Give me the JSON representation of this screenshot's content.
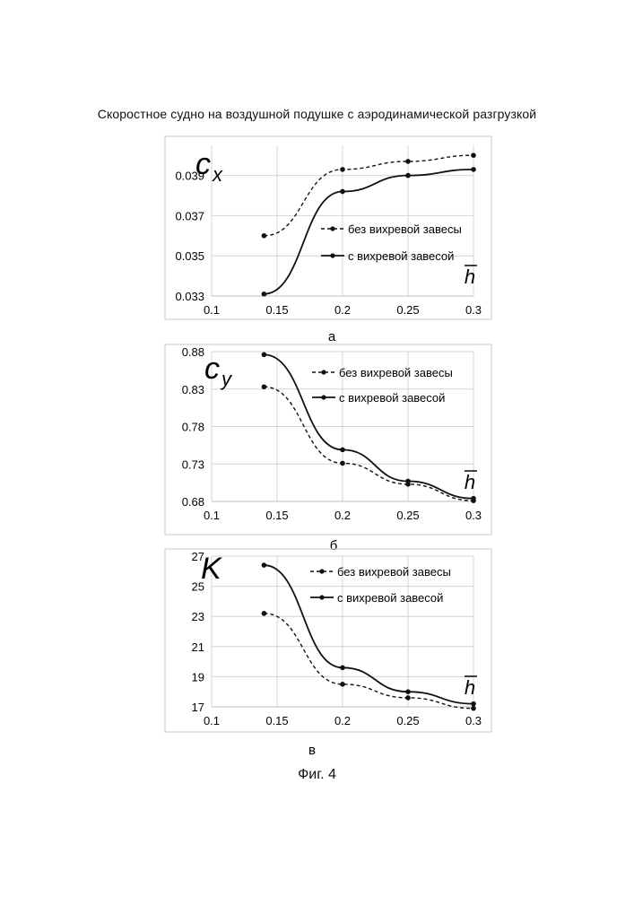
{
  "page": {
    "title": "Скоростное судно на воздушной подушке с аэродинамической разгрузкой",
    "caption": "Фиг. 4"
  },
  "chart_data": [
    {
      "type": "line",
      "panel_label": "а",
      "symbol": "c",
      "symbol_sub": "x",
      "xlabel": "h",
      "x_ticks": [
        "0.1",
        "0.15",
        "0.2",
        "0.25",
        "0.3"
      ],
      "y_ticks": [
        "0.033",
        "0.035",
        "0.037",
        "0.039"
      ],
      "xlim": [
        0.1,
        0.3
      ],
      "ylim": [
        0.033,
        0.0405
      ],
      "grid": true,
      "legend_position": "middle-right",
      "series": [
        {
          "name": "без вихревой завесы",
          "style": "dashed",
          "x": [
            0.14,
            0.2,
            0.25,
            0.3
          ],
          "y": [
            0.036,
            0.0393,
            0.0397,
            0.04
          ]
        },
        {
          "name": "с вихревой завесой",
          "style": "solid",
          "x": [
            0.14,
            0.2,
            0.25,
            0.3
          ],
          "y": [
            0.0331,
            0.0382,
            0.039,
            0.0393
          ]
        }
      ]
    },
    {
      "type": "line",
      "panel_label": "б",
      "symbol": "c",
      "symbol_sub": "y",
      "xlabel": "h",
      "x_ticks": [
        "0.1",
        "0.15",
        "0.2",
        "0.25",
        "0.3"
      ],
      "y_ticks": [
        "0.68",
        "0.73",
        "0.78",
        "0.83",
        "0.88"
      ],
      "xlim": [
        0.1,
        0.3
      ],
      "ylim": [
        0.68,
        0.88
      ],
      "grid": true,
      "legend_position": "top-right",
      "series": [
        {
          "name": "без вихревой завесы",
          "style": "dashed",
          "x": [
            0.14,
            0.2,
            0.25,
            0.3
          ],
          "y": [
            0.833,
            0.731,
            0.703,
            0.681
          ]
        },
        {
          "name": "с вихревой завесой",
          "style": "solid",
          "x": [
            0.14,
            0.2,
            0.25,
            0.3
          ],
          "y": [
            0.876,
            0.749,
            0.707,
            0.684
          ]
        }
      ]
    },
    {
      "type": "line",
      "panel_label": "в",
      "symbol": "K",
      "symbol_sub": "",
      "xlabel": "h",
      "x_ticks": [
        "0.1",
        "0.15",
        "0.2",
        "0.25",
        "0.3"
      ],
      "y_ticks": [
        "17",
        "19",
        "21",
        "23",
        "25",
        "27"
      ],
      "xlim": [
        0.1,
        0.3
      ],
      "ylim": [
        17,
        27
      ],
      "grid": true,
      "legend_position": "top-right",
      "series": [
        {
          "name": "без вихревой завесы",
          "style": "dashed",
          "x": [
            0.14,
            0.2,
            0.25,
            0.3
          ],
          "y": [
            23.2,
            18.5,
            17.6,
            16.9
          ]
        },
        {
          "name": "с вихревой завесой",
          "style": "solid",
          "x": [
            0.14,
            0.2,
            0.25,
            0.3
          ],
          "y": [
            26.4,
            19.6,
            18.0,
            17.2
          ]
        }
      ]
    }
  ]
}
